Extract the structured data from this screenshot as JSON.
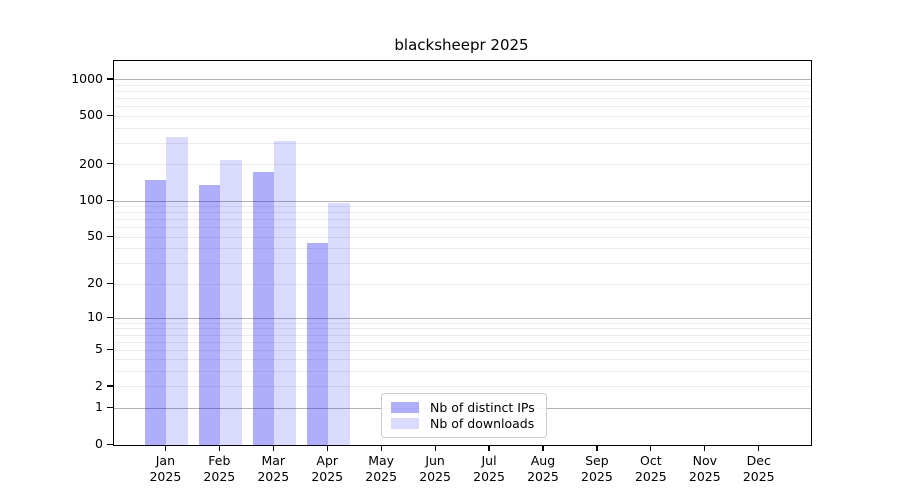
{
  "chart_data": {
    "type": "bar",
    "title": "blacksheepr 2025",
    "xlabel": "",
    "ylabel": "",
    "grid": true,
    "legend_position": "lower-center-of-plot",
    "y_axis": {
      "scale": "log10(1+x)",
      "max_value": 1430,
      "ticks": [
        {
          "value": 0,
          "label": "0"
        },
        {
          "value": 1,
          "label": "1"
        },
        {
          "value": 2,
          "label": "2"
        },
        {
          "value": 5,
          "label": "5"
        },
        {
          "value": 10,
          "label": "10"
        },
        {
          "value": 20,
          "label": "20"
        },
        {
          "value": 50,
          "label": "50"
        },
        {
          "value": 100,
          "label": "100"
        },
        {
          "value": 200,
          "label": "200"
        },
        {
          "value": 500,
          "label": "500"
        },
        {
          "value": 1000,
          "label": "1000"
        }
      ],
      "decade_gridlines": [
        1,
        10,
        100,
        1000
      ],
      "minor_gridlines": [
        2,
        3,
        4,
        5,
        6,
        7,
        8,
        9,
        20,
        30,
        40,
        50,
        60,
        70,
        80,
        90,
        200,
        300,
        400,
        500,
        600,
        700,
        800,
        900
      ]
    },
    "categories": [
      {
        "month": "Jan",
        "year": "2025"
      },
      {
        "month": "Feb",
        "year": "2025"
      },
      {
        "month": "Mar",
        "year": "2025"
      },
      {
        "month": "Apr",
        "year": "2025"
      },
      {
        "month": "May",
        "year": "2025"
      },
      {
        "month": "Jun",
        "year": "2025"
      },
      {
        "month": "Jul",
        "year": "2025"
      },
      {
        "month": "Aug",
        "year": "2025"
      },
      {
        "month": "Sep",
        "year": "2025"
      },
      {
        "month": "Oct",
        "year": "2025"
      },
      {
        "month": "Nov",
        "year": "2025"
      },
      {
        "month": "Dec",
        "year": "2025"
      }
    ],
    "series": [
      {
        "name": "Nb of distinct IPs",
        "fill": "rgba(20,20,240,0.345)",
        "legend_color": "#aeaef6",
        "values": [
          150,
          135,
          174,
          45,
          null,
          null,
          null,
          null,
          null,
          null,
          null,
          null
        ]
      },
      {
        "name": "Nb of downloads",
        "fill": "rgba(20,20,240,0.155)",
        "legend_color": "#dbdbfa",
        "values": [
          337,
          219,
          313,
          97,
          null,
          null,
          null,
          null,
          null,
          null,
          null,
          null
        ]
      }
    ]
  }
}
